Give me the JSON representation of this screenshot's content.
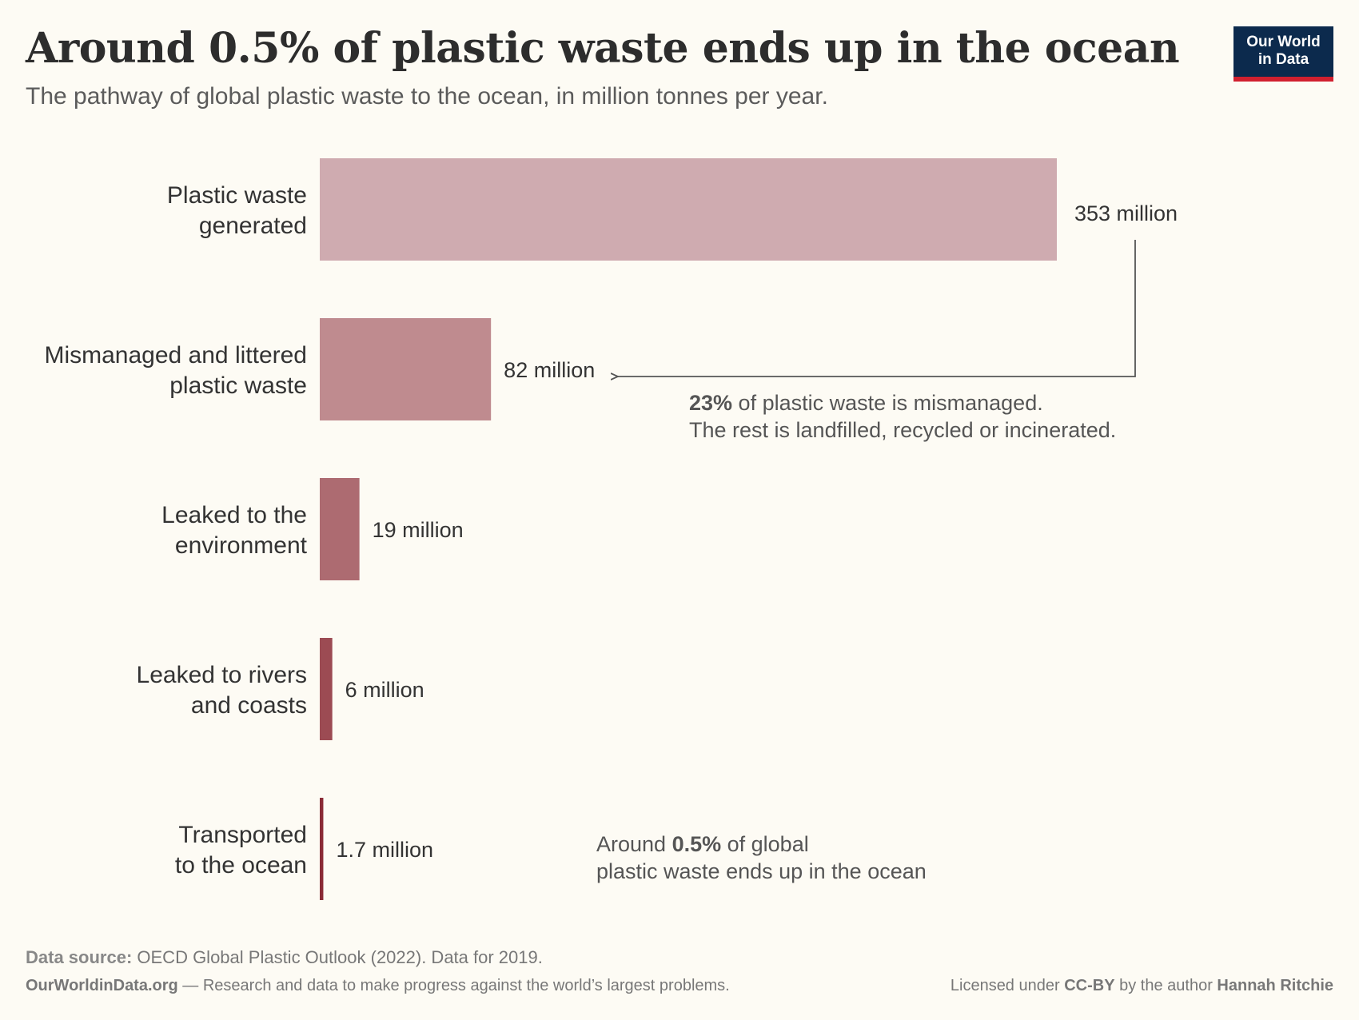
{
  "header": {
    "title": "Around 0.5% of plastic waste ends up in the ocean",
    "subtitle": "The pathway of global plastic waste to the ocean, in million tonnes per year."
  },
  "logo": {
    "line1": "Our World",
    "line2": "in Data",
    "bg_color": "#0c2a4d",
    "accent_color": "#d1202f"
  },
  "chart_data": {
    "type": "bar",
    "orientation": "horizontal",
    "categories": [
      [
        "Plastic waste",
        "generated"
      ],
      [
        "Mismanaged and littered",
        "plastic waste"
      ],
      [
        "Leaked to the",
        "environment"
      ],
      [
        "Leaked to rivers",
        "and coasts"
      ],
      [
        "Transported",
        "to the ocean"
      ]
    ],
    "values": [
      353,
      82,
      19,
      6,
      1.7
    ],
    "value_labels": [
      "353 million",
      "82 million",
      "19 million",
      "6 million",
      "1.7 million"
    ],
    "colors": [
      "#cfabb0",
      "#bf8b8f",
      "#ad6b71",
      "#9c4b53",
      "#8a2b36"
    ],
    "unit": "million tonnes per year",
    "xlim": [
      0,
      353
    ],
    "annotations": [
      {
        "id": "mismanaged",
        "parts": [
          [
            {
              "t": "23%",
              "b": true
            },
            {
              "t": " of plastic waste is mismanaged.",
              "b": false
            }
          ],
          [
            {
              "t": "The rest is landfilled, recycled or incinerated.",
              "b": false
            }
          ]
        ]
      },
      {
        "id": "ocean",
        "parts": [
          [
            {
              "t": "Around ",
              "b": false
            },
            {
              "t": "0.5%",
              "b": true
            },
            {
              "t": " of global",
              "b": false
            }
          ],
          [
            {
              "t": "plastic waste ends up in the ocean",
              "b": false
            }
          ]
        ]
      }
    ]
  },
  "footer": {
    "source_label": "Data source:",
    "source_text": " OECD Global Plastic Outlook (2022). Data for 2019.",
    "site": "OurWorldinData.org",
    "tagline": " — Research and data to make progress against the world’s largest problems.",
    "license_prefix": "Licensed under ",
    "license": "CC-BY",
    "license_mid": " by the author ",
    "author": "Hannah Ritchie"
  }
}
